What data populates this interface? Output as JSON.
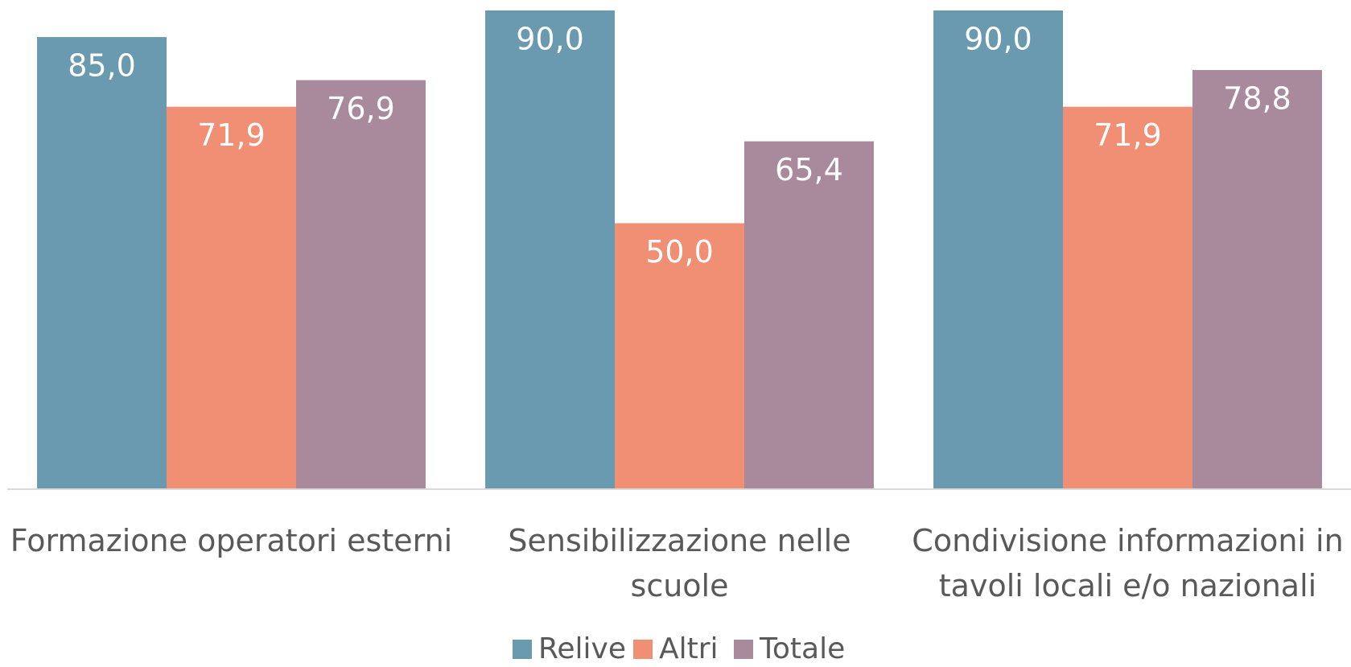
{
  "chart_data": {
    "type": "bar",
    "categories": [
      "Formazione operatori esterni",
      "Sensibilizzazione nelle scuole",
      "Condivisione informazioni in tavoli locali e/o nazionali"
    ],
    "series": [
      {
        "name": "Relive",
        "color": "#6a9ab0",
        "values": [
          85.0,
          90.0,
          90.0
        ],
        "value_labels": [
          "85,0",
          "90,0",
          "90,0"
        ]
      },
      {
        "name": "Altri",
        "color": "#f08f74",
        "values": [
          71.9,
          50.0,
          71.9
        ],
        "value_labels": [
          "71,9",
          "50,0",
          "71,9"
        ]
      },
      {
        "name": "Totale",
        "color": "#a9899c",
        "values": [
          76.9,
          65.4,
          78.8
        ],
        "value_labels": [
          "76,9",
          "65,4",
          "78,8"
        ]
      }
    ],
    "ylim": [
      0,
      90
    ]
  }
}
